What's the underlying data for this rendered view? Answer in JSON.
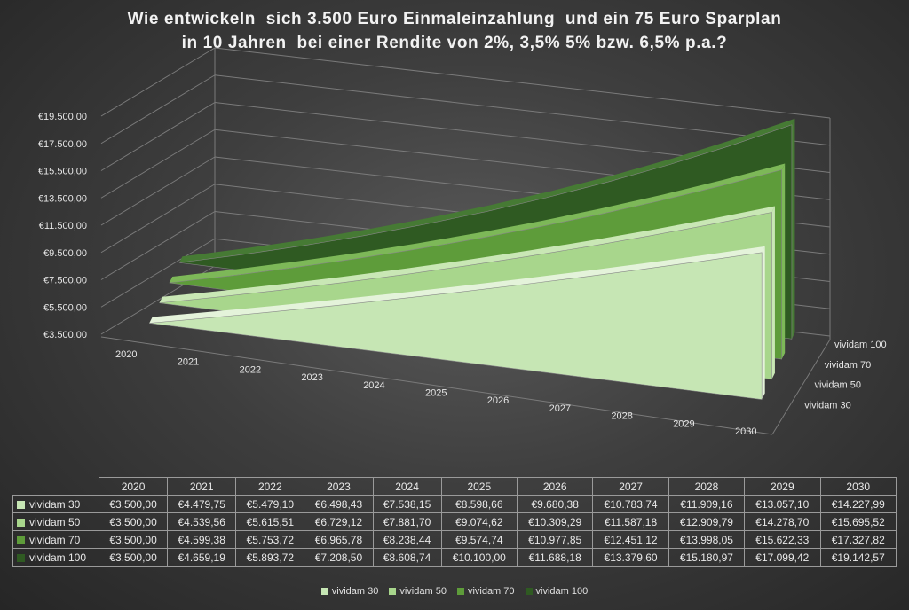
{
  "chart_data": {
    "type": "area",
    "title_line1": "Wie entwickeln  sich 3.500 Euro Einmaleinzahlung  und ein 75 Euro Sparplan",
    "title_line2": "in 10 Jahren  bei einer Rendite von 2%, 3,5% 5% bzw. 6,5% p.a.?",
    "categories": [
      "2020",
      "2021",
      "2022",
      "2023",
      "2024",
      "2025",
      "2026",
      "2027",
      "2028",
      "2029",
      "2030"
    ],
    "y_ticks": [
      "€3.500,00",
      "€5.500,00",
      "€7.500,00",
      "€9.500,00",
      "€11.500,00",
      "€13.500,00",
      "€15.500,00",
      "€17.500,00",
      "€19.500,00"
    ],
    "ylim": [
      3500,
      19500
    ],
    "series": [
      {
        "name": "vividam 30",
        "color": "#c6e6b4",
        "edge": "#e4f3da",
        "values": [
          3500.0,
          4479.75,
          5479.1,
          6498.43,
          7538.15,
          8598.66,
          9680.38,
          10783.74,
          11909.16,
          13057.1,
          14227.99
        ],
        "labels": [
          "€3.500,00",
          "€4.479,75",
          "€5.479,10",
          "€6.498,43",
          "€7.538,15",
          "€8.598,66",
          "€9.680,38",
          "€10.783,74",
          "€11.909,16",
          "€13.057,10",
          "€14.227,99"
        ]
      },
      {
        "name": "vividam 50",
        "color": "#a8d68c",
        "edge": "#c9e7b5",
        "values": [
          3500.0,
          4539.56,
          5615.51,
          6729.12,
          7881.7,
          9074.62,
          10309.29,
          11587.18,
          12909.79,
          14278.7,
          15695.52
        ],
        "labels": [
          "€3.500,00",
          "€4.539,56",
          "€5.615,51",
          "€6.729,12",
          "€7.881,70",
          "€9.074,62",
          "€10.309,29",
          "€11.587,18",
          "€12.909,79",
          "€14.278,70",
          "€15.695,52"
        ]
      },
      {
        "name": "vividam 70",
        "color": "#5e9c3a",
        "edge": "#7db858",
        "values": [
          3500.0,
          4599.38,
          5753.72,
          6965.78,
          8238.44,
          9574.74,
          10977.85,
          12451.12,
          13998.05,
          15622.33,
          17327.82
        ],
        "labels": [
          "€3.500,00",
          "€4.599,38",
          "€5.753,72",
          "€6.965,78",
          "€8.238,44",
          "€9.574,74",
          "€10.977,85",
          "€12.451,12",
          "€13.998,05",
          "€15.622,33",
          "€17.327,82"
        ]
      },
      {
        "name": "vividam 100",
        "color": "#2f5a22",
        "edge": "#467a34",
        "values": [
          3500.0,
          4659.19,
          5893.72,
          7208.5,
          8608.74,
          10100.0,
          11688.18,
          13379.6,
          15180.97,
          17099.42,
          19142.57
        ],
        "labels": [
          "€3.500,00",
          "€4.659,19",
          "€5.893,72",
          "€7.208,50",
          "€8.608,74",
          "€10.100,00",
          "€11.688,18",
          "€13.379,60",
          "€15.180,97",
          "€17.099,42",
          "€19.142,57"
        ]
      }
    ],
    "grid": true,
    "legend": "bottom",
    "data_table": true
  }
}
